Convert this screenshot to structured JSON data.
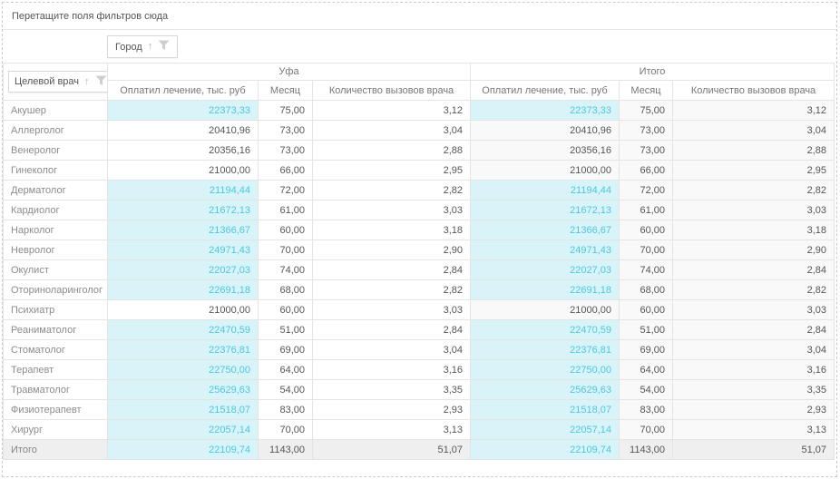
{
  "filter_bar": {
    "hint": "Перетащите поля фильтров сюда"
  },
  "column_field": {
    "label": "Город"
  },
  "row_field": {
    "label": "Целевой врач"
  },
  "column_groups": [
    {
      "label": "Уфа"
    },
    {
      "label": "Итого"
    }
  ],
  "measures": [
    "Оплатил лечение, тыс. руб",
    "Месяц",
    "Количество вызовов врача"
  ],
  "colors": {
    "highlight_bg": "#d9f4f8",
    "highlight_text": "#4cc6e2",
    "grand_total_row_bg": "#efefef",
    "total_column_bg": "#f9f9f9",
    "header_text": "#777777",
    "row_label_text": "#8c8c8c",
    "value_text": "#555555"
  },
  "rows": [
    {
      "label": "Акушер",
      "highlight": true,
      "is_total": false,
      "ufa": {
        "paid": "22373,33",
        "month": "75,00",
        "calls": "3,12"
      },
      "itogo": {
        "paid": "22373,33",
        "month": "75,00",
        "calls": "3,12"
      }
    },
    {
      "label": "Аллерголог",
      "highlight": false,
      "is_total": false,
      "ufa": {
        "paid": "20410,96",
        "month": "73,00",
        "calls": "3,04"
      },
      "itogo": {
        "paid": "20410,96",
        "month": "73,00",
        "calls": "3,04"
      }
    },
    {
      "label": "Венеролог",
      "highlight": false,
      "is_total": false,
      "ufa": {
        "paid": "20356,16",
        "month": "73,00",
        "calls": "2,88"
      },
      "itogo": {
        "paid": "20356,16",
        "month": "73,00",
        "calls": "2,88"
      }
    },
    {
      "label": "Гинеколог",
      "highlight": false,
      "is_total": false,
      "ufa": {
        "paid": "21000,00",
        "month": "66,00",
        "calls": "2,95"
      },
      "itogo": {
        "paid": "21000,00",
        "month": "66,00",
        "calls": "2,95"
      }
    },
    {
      "label": "Дерматолог",
      "highlight": true,
      "is_total": false,
      "ufa": {
        "paid": "21194,44",
        "month": "72,00",
        "calls": "2,82"
      },
      "itogo": {
        "paid": "21194,44",
        "month": "72,00",
        "calls": "2,82"
      }
    },
    {
      "label": "Кардиолог",
      "highlight": true,
      "is_total": false,
      "ufa": {
        "paid": "21672,13",
        "month": "61,00",
        "calls": "3,03"
      },
      "itogo": {
        "paid": "21672,13",
        "month": "61,00",
        "calls": "3,03"
      }
    },
    {
      "label": "Нарколог",
      "highlight": true,
      "is_total": false,
      "ufa": {
        "paid": "21366,67",
        "month": "60,00",
        "calls": "3,18"
      },
      "itogo": {
        "paid": "21366,67",
        "month": "60,00",
        "calls": "3,18"
      }
    },
    {
      "label": "Невролог",
      "highlight": true,
      "is_total": false,
      "ufa": {
        "paid": "24971,43",
        "month": "70,00",
        "calls": "2,90"
      },
      "itogo": {
        "paid": "24971,43",
        "month": "70,00",
        "calls": "2,90"
      }
    },
    {
      "label": "Окулист",
      "highlight": true,
      "is_total": false,
      "ufa": {
        "paid": "22027,03",
        "month": "74,00",
        "calls": "2,84"
      },
      "itogo": {
        "paid": "22027,03",
        "month": "74,00",
        "calls": "2,84"
      }
    },
    {
      "label": "Оториноларинголог",
      "highlight": true,
      "is_total": false,
      "ufa": {
        "paid": "22691,18",
        "month": "68,00",
        "calls": "2,82"
      },
      "itogo": {
        "paid": "22691,18",
        "month": "68,00",
        "calls": "2,82"
      }
    },
    {
      "label": "Психиатр",
      "highlight": false,
      "is_total": false,
      "ufa": {
        "paid": "21000,00",
        "month": "60,00",
        "calls": "3,03"
      },
      "itogo": {
        "paid": "21000,00",
        "month": "60,00",
        "calls": "3,03"
      }
    },
    {
      "label": "Реаниматолог",
      "highlight": true,
      "is_total": false,
      "ufa": {
        "paid": "22470,59",
        "month": "51,00",
        "calls": "2,84"
      },
      "itogo": {
        "paid": "22470,59",
        "month": "51,00",
        "calls": "2,84"
      }
    },
    {
      "label": "Стоматолог",
      "highlight": true,
      "is_total": false,
      "ufa": {
        "paid": "22376,81",
        "month": "69,00",
        "calls": "3,04"
      },
      "itogo": {
        "paid": "22376,81",
        "month": "69,00",
        "calls": "3,04"
      }
    },
    {
      "label": "Терапевт",
      "highlight": true,
      "is_total": false,
      "ufa": {
        "paid": "22750,00",
        "month": "64,00",
        "calls": "3,16"
      },
      "itogo": {
        "paid": "22750,00",
        "month": "64,00",
        "calls": "3,16"
      }
    },
    {
      "label": "Травматолог",
      "highlight": true,
      "is_total": false,
      "ufa": {
        "paid": "25629,63",
        "month": "54,00",
        "calls": "3,35"
      },
      "itogo": {
        "paid": "25629,63",
        "month": "54,00",
        "calls": "3,35"
      }
    },
    {
      "label": "Физиотерапевт",
      "highlight": true,
      "is_total": false,
      "ufa": {
        "paid": "21518,07",
        "month": "83,00",
        "calls": "2,93"
      },
      "itogo": {
        "paid": "21518,07",
        "month": "83,00",
        "calls": "2,93"
      }
    },
    {
      "label": "Хирург",
      "highlight": true,
      "is_total": false,
      "ufa": {
        "paid": "22057,14",
        "month": "70,00",
        "calls": "3,13"
      },
      "itogo": {
        "paid": "22057,14",
        "month": "70,00",
        "calls": "3,13"
      }
    },
    {
      "label": "Итого",
      "highlight": true,
      "is_total": true,
      "ufa": {
        "paid": "22109,74",
        "month": "1143,00",
        "calls": "51,07"
      },
      "itogo": {
        "paid": "22109,74",
        "month": "1143,00",
        "calls": "51,07"
      }
    }
  ]
}
